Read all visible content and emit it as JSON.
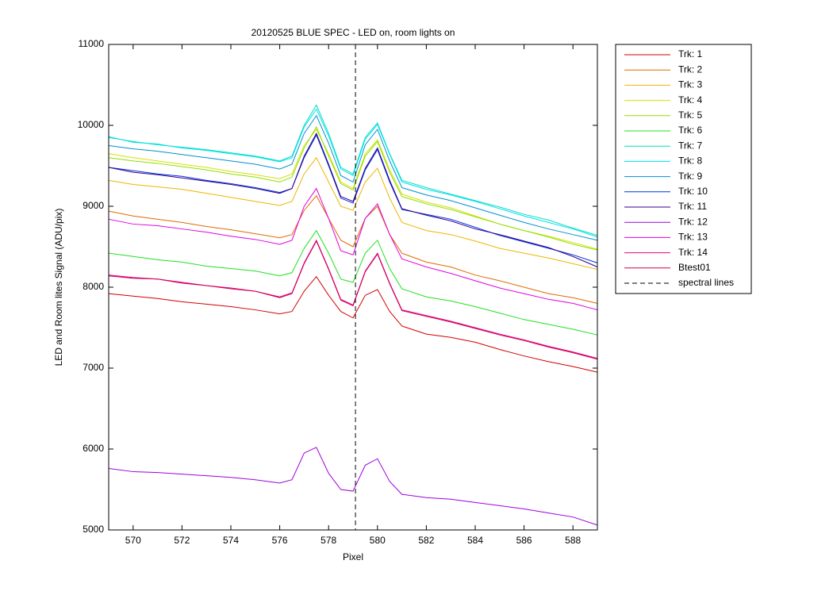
{
  "chart_data": {
    "type": "line",
    "title": "20120525 BLUE SPEC - LED on, room lights on",
    "xlabel": "Pixel",
    "ylabel": "LED and Room lites Signal (ADU/pix)",
    "xlim": [
      569,
      589
    ],
    "ylim": [
      5000,
      11000
    ],
    "xticks": [
      570,
      572,
      574,
      576,
      578,
      580,
      582,
      584,
      586,
      588
    ],
    "yticks": [
      5000,
      6000,
      7000,
      8000,
      9000,
      10000,
      11000
    ],
    "grid": false,
    "legend": "outside-right",
    "x": [
      569,
      570,
      571,
      572,
      573,
      574,
      575,
      576,
      576.5,
      577,
      577.5,
      578,
      578.5,
      579,
      579.5,
      580,
      580.5,
      581,
      582,
      583,
      584,
      585,
      586,
      587,
      588,
      589
    ],
    "series": [
      {
        "name": "Trk: 1",
        "color": "#d40000",
        "values": [
          7920,
          7890,
          7860,
          7820,
          7790,
          7760,
          7720,
          7670,
          7700,
          7950,
          8130,
          7900,
          7700,
          7620,
          7900,
          7970,
          7700,
          7520,
          7420,
          7380,
          7320,
          7230,
          7150,
          7080,
          7020,
          6950
        ]
      },
      {
        "name": "Trk: 2",
        "color": "#e06a00",
        "values": [
          8940,
          8880,
          8840,
          8800,
          8750,
          8710,
          8660,
          8610,
          8650,
          8950,
          9130,
          8850,
          8580,
          8500,
          8850,
          9000,
          8650,
          8420,
          8310,
          8250,
          8150,
          8080,
          8000,
          7920,
          7870,
          7800
        ]
      },
      {
        "name": "Trk: 3",
        "color": "#f0b400",
        "values": [
          9320,
          9270,
          9240,
          9210,
          9160,
          9110,
          9060,
          9010,
          9060,
          9400,
          9600,
          9300,
          9000,
          8950,
          9300,
          9470,
          9100,
          8800,
          8700,
          8650,
          8570,
          8480,
          8420,
          8360,
          8290,
          8220
        ]
      },
      {
        "name": "Trk: 4",
        "color": "#d6e000",
        "values": [
          9650,
          9600,
          9560,
          9520,
          9480,
          9430,
          9390,
          9340,
          9400,
          9750,
          9950,
          9650,
          9300,
          9220,
          9650,
          9820,
          9450,
          9150,
          9050,
          8980,
          8880,
          8780,
          8700,
          8630,
          8550,
          8470
        ]
      },
      {
        "name": "Trk: 5",
        "color": "#8ee000",
        "values": [
          9600,
          9560,
          9530,
          9490,
          9450,
          9400,
          9360,
          9300,
          9360,
          9720,
          9980,
          9620,
          9280,
          9200,
          9620,
          9800,
          9420,
          9120,
          9030,
          8960,
          8870,
          8780,
          8700,
          8620,
          8530,
          8460
        ]
      },
      {
        "name": "Trk: 6",
        "color": "#20e020",
        "values": [
          8420,
          8380,
          8340,
          8310,
          8260,
          8230,
          8200,
          8140,
          8180,
          8480,
          8700,
          8420,
          8100,
          8060,
          8420,
          8580,
          8230,
          7980,
          7880,
          7830,
          7760,
          7680,
          7600,
          7540,
          7480,
          7410
        ]
      },
      {
        "name": "Trk: 7",
        "color": "#00e0c0",
        "values": [
          9850,
          9800,
          9760,
          9730,
          9700,
          9660,
          9620,
          9560,
          9620,
          10000,
          10250,
          9900,
          9480,
          9400,
          9850,
          10030,
          9650,
          9320,
          9230,
          9150,
          9070,
          8990,
          8900,
          8830,
          8730,
          8640
        ]
      },
      {
        "name": "Trk: 8",
        "color": "#00e0f0",
        "values": [
          9860,
          9790,
          9770,
          9720,
          9690,
          9650,
          9610,
          9550,
          9600,
          9980,
          10200,
          9870,
          9460,
          9380,
          9830,
          10010,
          9640,
          9300,
          9210,
          9140,
          9060,
          8970,
          8880,
          8800,
          8720,
          8620
        ]
      },
      {
        "name": "Trk: 9",
        "color": "#0090d0",
        "values": [
          9750,
          9710,
          9680,
          9640,
          9600,
          9560,
          9520,
          9460,
          9520,
          9900,
          10120,
          9780,
          9380,
          9300,
          9760,
          9950,
          9560,
          9230,
          9140,
          9070,
          8980,
          8890,
          8800,
          8720,
          8650,
          8580
        ]
      },
      {
        "name": "Trk: 10",
        "color": "#0030e0",
        "values": [
          9480,
          9440,
          9400,
          9370,
          9320,
          9280,
          9230,
          9170,
          9220,
          9600,
          9880,
          9500,
          9100,
          9040,
          9450,
          9700,
          9300,
          8960,
          8900,
          8840,
          8740,
          8640,
          8560,
          8480,
          8400,
          8300
        ]
      },
      {
        "name": "Trk: 11",
        "color": "#300090",
        "values": [
          9480,
          9420,
          9390,
          9350,
          9310,
          9270,
          9220,
          9160,
          9220,
          9620,
          9900,
          9520,
          9120,
          9060,
          9470,
          9720,
          9320,
          8970,
          8890,
          8820,
          8720,
          8650,
          8570,
          8490,
          8380,
          8250
        ]
      },
      {
        "name": "Trk: 12",
        "color": "#a000e0",
        "values": [
          5760,
          5720,
          5710,
          5690,
          5670,
          5650,
          5620,
          5580,
          5620,
          5950,
          6020,
          5700,
          5500,
          5480,
          5800,
          5880,
          5600,
          5440,
          5400,
          5380,
          5340,
          5300,
          5260,
          5210,
          5160,
          5060
        ]
      },
      {
        "name": "Trk: 13",
        "color": "#e000e0",
        "values": [
          8840,
          8780,
          8760,
          8720,
          8680,
          8630,
          8590,
          8530,
          8580,
          9000,
          9220,
          8850,
          8450,
          8400,
          8850,
          9030,
          8650,
          8350,
          8250,
          8170,
          8080,
          7990,
          7920,
          7850,
          7800,
          7720
        ]
      },
      {
        "name": "Trk: 14",
        "color": "#e00090",
        "values": [
          8150,
          8120,
          8100,
          8060,
          8020,
          7990,
          7950,
          7880,
          7930,
          8300,
          8580,
          8230,
          7850,
          7780,
          8200,
          8420,
          8050,
          7720,
          7650,
          7580,
          7500,
          7420,
          7350,
          7270,
          7200,
          7120
        ]
      },
      {
        "name": "Btest01",
        "color": "#d00050",
        "values": [
          8140,
          8110,
          8100,
          8050,
          8020,
          7980,
          7950,
          7870,
          7920,
          8290,
          8570,
          8220,
          7840,
          7770,
          8190,
          8410,
          8040,
          7710,
          7640,
          7570,
          7490,
          7410,
          7340,
          7260,
          7190,
          7110
        ]
      }
    ],
    "spectral_line": {
      "name": "spectral lines",
      "x": 579.1,
      "color": "#000000"
    }
  }
}
